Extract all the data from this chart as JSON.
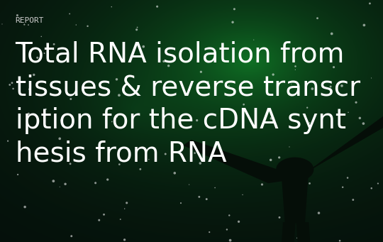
{
  "report_label": "REPORT",
  "title_lines": [
    "Total RNA isolation from",
    "tissues & reverse transcr",
    "iption for the cDNA synt",
    "hesis from RNA"
  ],
  "bg_color_top": "#0a2a1a",
  "bg_color_mid": "#0d5c3a",
  "bg_color_bot": "#081a10",
  "text_color": "#ffffff",
  "report_color": "#cccccc",
  "title_fontsize": 28,
  "report_fontsize": 8,
  "fig_width": 5.4,
  "fig_height": 3.41,
  "dpi": 100,
  "silhouette_color": "#050e08",
  "n_stars": 120,
  "star_seed": 42
}
